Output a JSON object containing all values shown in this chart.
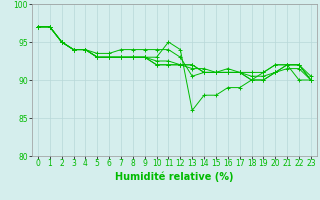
{
  "background_color": "#d5eeed",
  "grid_color": "#b8d8d8",
  "line_color": "#00bb00",
  "xlabel": "Humidité relative (%)",
  "xlabel_fontsize": 7,
  "tick_fontsize": 5.5,
  "xlim": [
    -0.5,
    23.5
  ],
  "ylim": [
    80,
    100
  ],
  "yticks": [
    80,
    85,
    90,
    95,
    100
  ],
  "xticks": [
    0,
    1,
    2,
    3,
    4,
    5,
    6,
    7,
    8,
    9,
    10,
    11,
    12,
    13,
    14,
    15,
    16,
    17,
    18,
    19,
    20,
    21,
    22,
    23
  ],
  "series": [
    [
      97.0,
      97.0,
      95.0,
      94.0,
      94.0,
      93.0,
      93.0,
      93.0,
      93.0,
      93.0,
      93.0,
      95.0,
      94.0,
      86.0,
      88.0,
      88.0,
      89.0,
      89.0,
      90.0,
      91.0,
      92.0,
      92.0,
      90.0,
      90.0
    ],
    [
      97.0,
      97.0,
      95.0,
      94.0,
      94.0,
      93.5,
      93.5,
      94.0,
      94.0,
      94.0,
      94.0,
      94.0,
      93.0,
      90.5,
      91.0,
      91.0,
      91.5,
      91.0,
      91.0,
      91.0,
      92.0,
      92.0,
      92.0,
      90.5
    ],
    [
      97.0,
      97.0,
      95.0,
      94.0,
      94.0,
      93.0,
      93.0,
      93.0,
      93.0,
      93.0,
      92.5,
      92.5,
      92.0,
      91.5,
      91.5,
      91.0,
      91.0,
      91.0,
      90.5,
      90.5,
      91.0,
      91.5,
      91.5,
      90.0
    ],
    [
      97.0,
      97.0,
      95.0,
      94.0,
      94.0,
      93.0,
      93.0,
      93.0,
      93.0,
      93.0,
      92.0,
      92.0,
      92.0,
      92.0,
      91.0,
      91.0,
      91.0,
      91.0,
      90.0,
      90.0,
      91.0,
      92.0,
      92.0,
      90.0
    ],
    [
      97.0,
      97.0,
      95.0,
      94.0,
      94.0,
      93.0,
      93.0,
      93.0,
      93.0,
      93.0,
      92.0,
      92.0,
      92.0,
      92.0,
      91.0,
      91.0,
      91.0,
      91.0,
      90.0,
      90.0,
      91.0,
      92.0,
      92.0,
      90.0
    ]
  ]
}
